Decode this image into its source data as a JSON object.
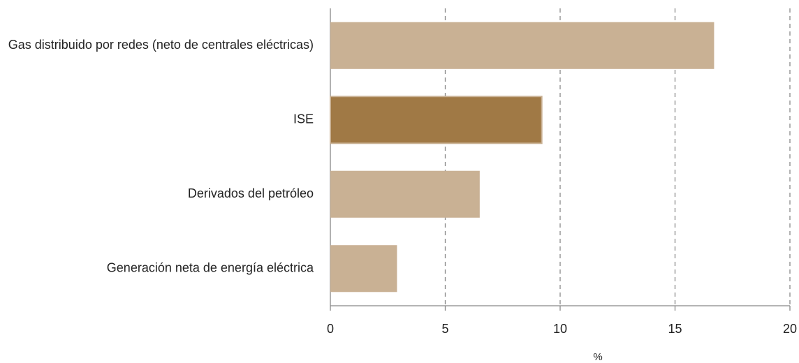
{
  "chart_data": {
    "type": "bar",
    "orientation": "horizontal",
    "categories": [
      "Gas distribuido por redes (neto de centrales eléctricas)",
      "ISE",
      "Derivados del petróleo",
      "Generación neta de energía eléctrica"
    ],
    "values": [
      16.7,
      9.2,
      6.5,
      2.9
    ],
    "colors": [
      "#c9b194",
      "#a07945",
      "#c9b194",
      "#c9b194"
    ],
    "xlim": [
      0,
      20
    ],
    "xticks": [
      0,
      5,
      10,
      15,
      20
    ],
    "grid": true,
    "x_label": "%"
  }
}
